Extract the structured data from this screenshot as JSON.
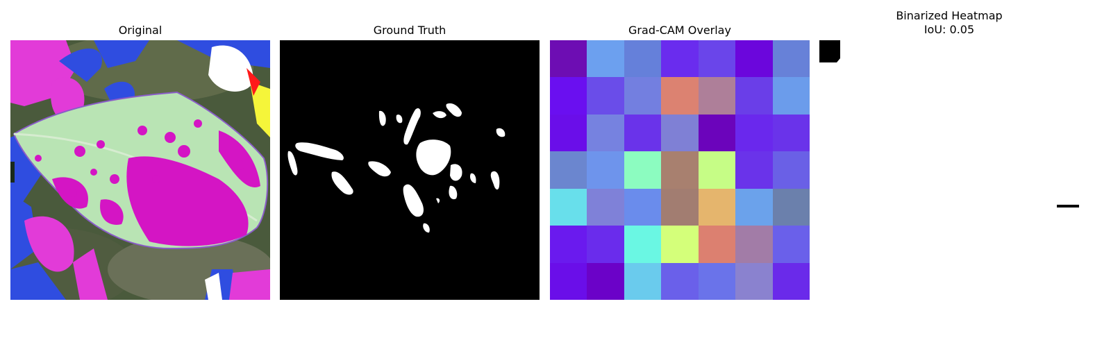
{
  "panels": [
    {
      "title": "Original"
    },
    {
      "title": "Ground Truth"
    },
    {
      "title": "Grad-CAM Overlay"
    },
    {
      "title_line1": "Binarized Heatmap",
      "title_line2": "IoU: 0.05",
      "iou": 0.05
    }
  ],
  "gradcam_grid": [
    [
      "#6d0db3",
      "#6ca0ef",
      "#6580da",
      "#6a2cee",
      "#6a45ea",
      "#6b06dc",
      "#6781d8"
    ],
    [
      "#6a0ff0",
      "#6a4de9",
      "#737fe0",
      "#dc8271",
      "#ae7f99",
      "#6a3ee8",
      "#6b9ceb"
    ],
    [
      "#6a0ee9",
      "#7682e0",
      "#6a33ea",
      "#7f80d5",
      "#6b04bb",
      "#6a28ed",
      "#6a33ea"
    ],
    [
      "#6b86cf",
      "#6e94ec",
      "#8cfcc0",
      "#a8806f",
      "#c6fd86",
      "#6a33ea",
      "#6a60e6"
    ],
    [
      "#68dfeb",
      "#7f81d8",
      "#6a8cec",
      "#a27d71",
      "#e5b56d",
      "#6ba2eb",
      "#6b80ac"
    ],
    [
      "#6a1aee",
      "#6a2cec",
      "#6af7e3",
      "#d4ff7a",
      "#dc8070",
      "#a27ca7",
      "#6a60ea"
    ],
    [
      "#6a0ee9",
      "#6b02c8",
      "#6acbed",
      "#6a60ea",
      "#6a73ea",
      "#8a82cf",
      "#6a2aea"
    ]
  ]
}
